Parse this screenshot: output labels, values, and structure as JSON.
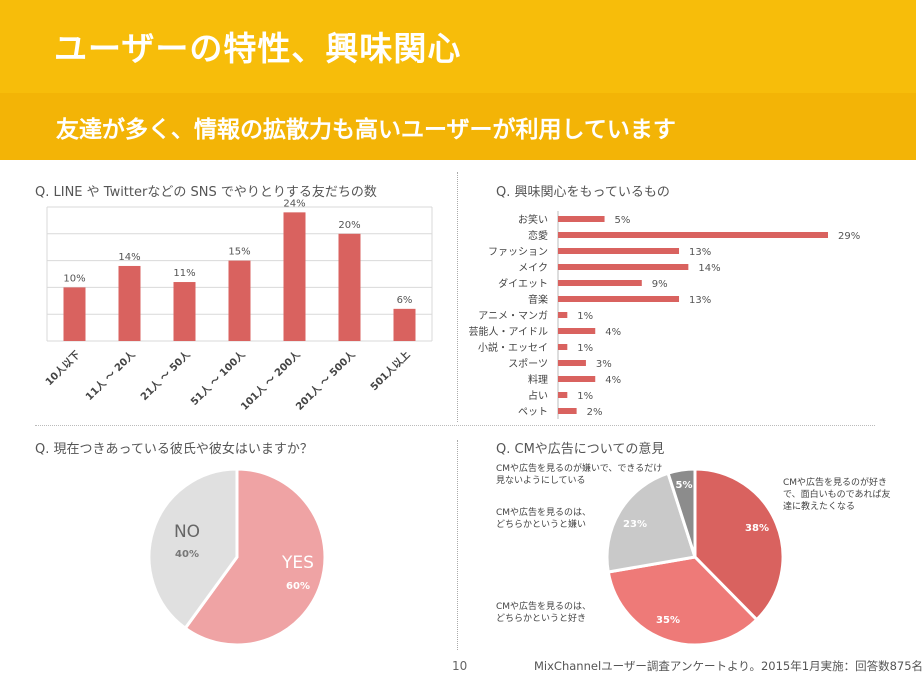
{
  "header": {
    "title": "ユーザーの特性、興味関心",
    "subtitle": "友達が多く、情報の拡散力も高いユーザーが利用しています"
  },
  "questions": {
    "q1": "Q. LINE や Twitterなどの SNS でやりとりする友だちの数",
    "q2": "Q. 興味関心をもっているもの",
    "q3": "Q. 現在つきあっている彼氏や彼女はいますか？",
    "q4": "Q. CMや広告についての意見"
  },
  "footer": {
    "page": "10",
    "source": "MixChannelユーザー調査アンケートより。2015年1月実施：回答数875名"
  },
  "colors": {
    "header": "#f7bd0a",
    "bar": "#d9625f",
    "pink": "#efa3a4",
    "grey": "#e0e0e0"
  },
  "chart_data": [
    {
      "type": "bar",
      "categories": [
        "10人以下",
        "11人 ～ 20人",
        "21人 ～ 50人",
        "51人 ～ 100人",
        "101人 ～ 200人",
        "201人 ～ 500人",
        "501人以上"
      ],
      "values": [
        10,
        14,
        11,
        15,
        24,
        20,
        6
      ],
      "labels": [
        "10%",
        "14%",
        "11%",
        "15%",
        "24%",
        "20%",
        "6%"
      ],
      "ylim": [
        0,
        25
      ],
      "grid": true
    },
    {
      "type": "bar",
      "orientation": "horizontal",
      "categories": [
        "お笑い",
        "恋愛",
        "ファッション",
        "メイク",
        "ダイエット",
        "音楽",
        "アニメ・マンガ",
        "芸能人・アイドル",
        "小説・エッセイ",
        "スポーツ",
        "料理",
        "占い",
        "ペット"
      ],
      "values": [
        5,
        29,
        13,
        14,
        9,
        13,
        1,
        4,
        1,
        3,
        4,
        1,
        2
      ],
      "labels": [
        "5%",
        "29%",
        "13%",
        "14%",
        "9%",
        "13%",
        "1%",
        "4%",
        "1%",
        "3%",
        "4%",
        "1%",
        "2%"
      ],
      "xlim": [
        0,
        29
      ]
    },
    {
      "type": "pie",
      "slices": [
        {
          "name": "YES",
          "value": 60,
          "label": "60%",
          "color": "#efa3a4"
        },
        {
          "name": "NO",
          "value": 40,
          "label": "40%",
          "color": "#e0e0e0"
        }
      ]
    },
    {
      "type": "pie",
      "slices": [
        {
          "name": "CMや広告を見るのが好きで、面白いものであれば友達に教えたくなる",
          "value": 38,
          "label": "38%",
          "color": "#d9625f"
        },
        {
          "name": "CMや広告を見るのは、どちらかというと好き",
          "value": 35,
          "label": "35%",
          "color": "#ee7a78"
        },
        {
          "name": "CMや広告を見るのは、どちらかというと嫌い",
          "value": 23,
          "label": "23%",
          "color": "#c9c9c9"
        },
        {
          "name": "CMや広告を見るのが嫌いで、できるだけ見ないようにしている",
          "value": 5,
          "label": "5%",
          "color": "#8c8c8c"
        }
      ]
    }
  ]
}
